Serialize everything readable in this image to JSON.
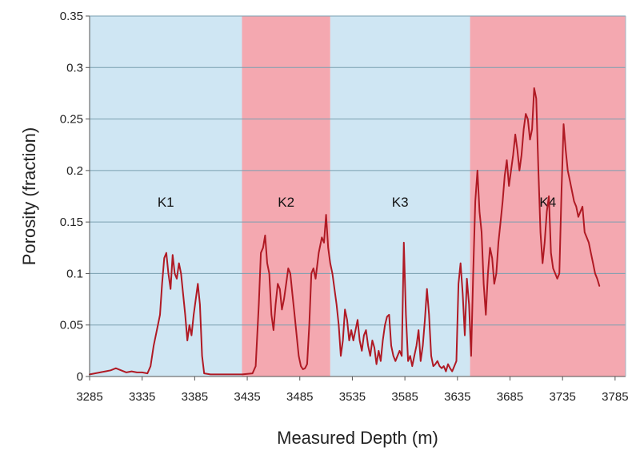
{
  "chart_data": {
    "type": "line",
    "title": "",
    "xlabel": "Measured Depth (m)",
    "ylabel": "Porosity (fraction)",
    "xlim": [
      3285,
      3795
    ],
    "ylim": [
      0,
      0.35
    ],
    "x_ticks": [
      3285,
      3335,
      3385,
      3435,
      3485,
      3535,
      3585,
      3635,
      3685,
      3735,
      3785
    ],
    "y_ticks": [
      0,
      0.05,
      0.1,
      0.15,
      0.2,
      0.25,
      0.3,
      0.35
    ],
    "x_tick_labels": [
      "3285",
      "3335",
      "3385",
      "3435",
      "3485",
      "3535",
      "3585",
      "3635",
      "3685",
      "3735",
      "3785"
    ],
    "y_tick_labels": [
      "0",
      "0.05",
      "0.1",
      "0.15",
      "0.2",
      "0.25",
      "0.3",
      "0.35"
    ],
    "grid": true,
    "legend": "none",
    "zones": [
      {
        "label": "K1",
        "from": 3285,
        "to": 3430,
        "color": "#cfe6f3"
      },
      {
        "label": "K2",
        "from": 3430,
        "to": 3514,
        "color": "#f4a8b0"
      },
      {
        "label": "K3",
        "from": 3514,
        "to": 3647,
        "color": "#cfe6f3"
      },
      {
        "label": "K4",
        "from": 3647,
        "to": 3795,
        "color": "#f4a8b0"
      }
    ],
    "series": [
      {
        "color": "#b01a24",
        "points": [
          [
            3285,
            0.002
          ],
          [
            3290,
            0.003
          ],
          [
            3295,
            0.004
          ],
          [
            3300,
            0.005
          ],
          [
            3305,
            0.006
          ],
          [
            3310,
            0.008
          ],
          [
            3315,
            0.006
          ],
          [
            3320,
            0.004
          ],
          [
            3325,
            0.005
          ],
          [
            3330,
            0.004
          ],
          [
            3335,
            0.004
          ],
          [
            3340,
            0.003
          ],
          [
            3343,
            0.01
          ],
          [
            3346,
            0.03
          ],
          [
            3349,
            0.045
          ],
          [
            3352,
            0.06
          ],
          [
            3354,
            0.09
          ],
          [
            3356,
            0.115
          ],
          [
            3358,
            0.12
          ],
          [
            3360,
            0.1
          ],
          [
            3362,
            0.085
          ],
          [
            3364,
            0.118
          ],
          [
            3366,
            0.1
          ],
          [
            3368,
            0.095
          ],
          [
            3370,
            0.11
          ],
          [
            3372,
            0.1
          ],
          [
            3374,
            0.08
          ],
          [
            3376,
            0.06
          ],
          [
            3378,
            0.035
          ],
          [
            3380,
            0.05
          ],
          [
            3382,
            0.04
          ],
          [
            3384,
            0.06
          ],
          [
            3386,
            0.075
          ],
          [
            3388,
            0.09
          ],
          [
            3390,
            0.07
          ],
          [
            3392,
            0.02
          ],
          [
            3394,
            0.003
          ],
          [
            3400,
            0.002
          ],
          [
            3410,
            0.002
          ],
          [
            3420,
            0.002
          ],
          [
            3430,
            0.002
          ],
          [
            3440,
            0.003
          ],
          [
            3443,
            0.01
          ],
          [
            3446,
            0.07
          ],
          [
            3448,
            0.12
          ],
          [
            3450,
            0.125
          ],
          [
            3452,
            0.137
          ],
          [
            3454,
            0.11
          ],
          [
            3456,
            0.1
          ],
          [
            3458,
            0.06
          ],
          [
            3460,
            0.045
          ],
          [
            3462,
            0.07
          ],
          [
            3464,
            0.09
          ],
          [
            3466,
            0.085
          ],
          [
            3468,
            0.065
          ],
          [
            3470,
            0.075
          ],
          [
            3472,
            0.09
          ],
          [
            3474,
            0.105
          ],
          [
            3476,
            0.1
          ],
          [
            3478,
            0.08
          ],
          [
            3480,
            0.06
          ],
          [
            3482,
            0.04
          ],
          [
            3484,
            0.02
          ],
          [
            3486,
            0.01
          ],
          [
            3488,
            0.007
          ],
          [
            3490,
            0.008
          ],
          [
            3492,
            0.012
          ],
          [
            3494,
            0.05
          ],
          [
            3496,
            0.1
          ],
          [
            3498,
            0.105
          ],
          [
            3500,
            0.095
          ],
          [
            3503,
            0.12
          ],
          [
            3506,
            0.135
          ],
          [
            3508,
            0.13
          ],
          [
            3510,
            0.157
          ],
          [
            3512,
            0.125
          ],
          [
            3514,
            0.11
          ],
          [
            3516,
            0.1
          ],
          [
            3518,
            0.085
          ],
          [
            3520,
            0.07
          ],
          [
            3522,
            0.05
          ],
          [
            3524,
            0.02
          ],
          [
            3526,
            0.035
          ],
          [
            3528,
            0.065
          ],
          [
            3530,
            0.055
          ],
          [
            3532,
            0.035
          ],
          [
            3534,
            0.045
          ],
          [
            3536,
            0.035
          ],
          [
            3538,
            0.045
          ],
          [
            3540,
            0.055
          ],
          [
            3542,
            0.035
          ],
          [
            3544,
            0.025
          ],
          [
            3546,
            0.04
          ],
          [
            3548,
            0.045
          ],
          [
            3550,
            0.03
          ],
          [
            3552,
            0.02
          ],
          [
            3554,
            0.035
          ],
          [
            3556,
            0.028
          ],
          [
            3558,
            0.012
          ],
          [
            3560,
            0.025
          ],
          [
            3562,
            0.015
          ],
          [
            3564,
            0.035
          ],
          [
            3566,
            0.05
          ],
          [
            3568,
            0.058
          ],
          [
            3570,
            0.06
          ],
          [
            3572,
            0.03
          ],
          [
            3574,
            0.02
          ],
          [
            3576,
            0.015
          ],
          [
            3578,
            0.02
          ],
          [
            3580,
            0.025
          ],
          [
            3582,
            0.02
          ],
          [
            3584,
            0.13
          ],
          [
            3586,
            0.06
          ],
          [
            3588,
            0.015
          ],
          [
            3590,
            0.02
          ],
          [
            3592,
            0.01
          ],
          [
            3594,
            0.02
          ],
          [
            3596,
            0.03
          ],
          [
            3598,
            0.045
          ],
          [
            3600,
            0.015
          ],
          [
            3602,
            0.03
          ],
          [
            3604,
            0.055
          ],
          [
            3606,
            0.085
          ],
          [
            3608,
            0.06
          ],
          [
            3610,
            0.02
          ],
          [
            3612,
            0.01
          ],
          [
            3614,
            0.012
          ],
          [
            3616,
            0.015
          ],
          [
            3618,
            0.01
          ],
          [
            3620,
            0.008
          ],
          [
            3622,
            0.01
          ],
          [
            3624,
            0.005
          ],
          [
            3626,
            0.012
          ],
          [
            3628,
            0.008
          ],
          [
            3630,
            0.005
          ],
          [
            3632,
            0.01
          ],
          [
            3634,
            0.015
          ],
          [
            3636,
            0.09
          ],
          [
            3638,
            0.11
          ],
          [
            3640,
            0.08
          ],
          [
            3642,
            0.04
          ],
          [
            3644,
            0.095
          ],
          [
            3646,
            0.07
          ],
          [
            3648,
            0.02
          ],
          [
            3650,
            0.1
          ],
          [
            3652,
            0.17
          ],
          [
            3654,
            0.2
          ],
          [
            3656,
            0.16
          ],
          [
            3658,
            0.14
          ],
          [
            3660,
            0.09
          ],
          [
            3662,
            0.06
          ],
          [
            3664,
            0.1
          ],
          [
            3666,
            0.125
          ],
          [
            3668,
            0.115
          ],
          [
            3670,
            0.09
          ],
          [
            3672,
            0.1
          ],
          [
            3674,
            0.13
          ],
          [
            3676,
            0.15
          ],
          [
            3678,
            0.17
          ],
          [
            3680,
            0.195
          ],
          [
            3682,
            0.21
          ],
          [
            3684,
            0.185
          ],
          [
            3686,
            0.2
          ],
          [
            3688,
            0.215
          ],
          [
            3690,
            0.235
          ],
          [
            3692,
            0.22
          ],
          [
            3694,
            0.2
          ],
          [
            3696,
            0.215
          ],
          [
            3698,
            0.24
          ],
          [
            3700,
            0.255
          ],
          [
            3702,
            0.25
          ],
          [
            3704,
            0.23
          ],
          [
            3706,
            0.24
          ],
          [
            3708,
            0.28
          ],
          [
            3710,
            0.27
          ],
          [
            3712,
            0.2
          ],
          [
            3714,
            0.14
          ],
          [
            3716,
            0.11
          ],
          [
            3718,
            0.13
          ],
          [
            3720,
            0.16
          ],
          [
            3722,
            0.175
          ],
          [
            3724,
            0.12
          ],
          [
            3726,
            0.105
          ],
          [
            3728,
            0.1
          ],
          [
            3730,
            0.095
          ],
          [
            3732,
            0.1
          ],
          [
            3734,
            0.18
          ],
          [
            3736,
            0.245
          ],
          [
            3738,
            0.22
          ],
          [
            3740,
            0.2
          ],
          [
            3742,
            0.19
          ],
          [
            3744,
            0.18
          ],
          [
            3746,
            0.17
          ],
          [
            3748,
            0.165
          ],
          [
            3750,
            0.155
          ],
          [
            3752,
            0.16
          ],
          [
            3754,
            0.165
          ],
          [
            3756,
            0.14
          ],
          [
            3758,
            0.135
          ],
          [
            3760,
            0.13
          ],
          [
            3762,
            0.12
          ],
          [
            3764,
            0.11
          ],
          [
            3766,
            0.1
          ],
          [
            3768,
            0.095
          ],
          [
            3770,
            0.088
          ]
        ]
      }
    ]
  }
}
